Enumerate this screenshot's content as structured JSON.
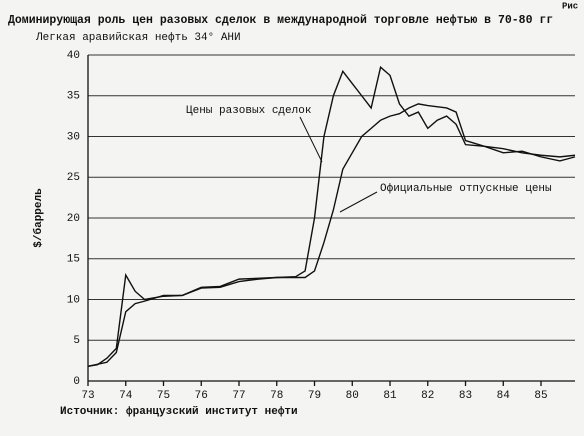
{
  "chart_data": {
    "type": "line",
    "figure_label": "Рис",
    "title": "Доминирующая роль цен разовых сделок в международной торговле нефтью в 70-80 гг",
    "subtitle": "Легкая аравийская нефть 34° АНИ",
    "y_label": "$/баррель",
    "source": "Источник: французский институт нефти",
    "xlim": [
      73,
      85.9
    ],
    "xticks": [
      73,
      74,
      75,
      76,
      77,
      78,
      79,
      80,
      81,
      82,
      83,
      84,
      85
    ],
    "ylim": [
      0,
      40
    ],
    "yticks": [
      0,
      5,
      10,
      15,
      20,
      25,
      30,
      35,
      40
    ],
    "grid": true,
    "series": [
      {
        "name": "Цены разовых сделок",
        "color": "#111111",
        "x": [
          73,
          73.25,
          73.5,
          73.75,
          74,
          74.25,
          74.5,
          74.75,
          75,
          75.5,
          76,
          76.5,
          77,
          77.5,
          78,
          78.5,
          78.75,
          79,
          79.25,
          79.5,
          79.75,
          80,
          80.25,
          80.5,
          80.75,
          81,
          81.25,
          81.5,
          81.75,
          82,
          82.25,
          82.5,
          82.75,
          83,
          83.5,
          84,
          84.5,
          85,
          85.5,
          85.9
        ],
        "values": [
          1.8,
          2,
          2.8,
          4,
          13,
          11,
          10,
          10.2,
          10.4,
          10.5,
          11.5,
          11.6,
          12.5,
          12.6,
          12.7,
          12.8,
          13.5,
          20,
          30,
          35,
          38,
          36.5,
          35,
          33.5,
          38.5,
          37.5,
          34,
          32.5,
          33,
          31,
          32,
          32.5,
          31.5,
          29,
          28.8,
          28,
          28.2,
          27.5,
          27,
          27.5
        ]
      },
      {
        "name": "Официальные отпускные цены",
        "color": "#111111",
        "x": [
          73,
          73.5,
          73.75,
          74,
          74.25,
          74.5,
          75,
          75.5,
          76,
          76.5,
          77,
          77.5,
          78,
          78.75,
          79,
          79.25,
          79.5,
          79.75,
          80,
          80.25,
          80.5,
          80.75,
          81,
          81.25,
          81.5,
          81.75,
          82,
          82.5,
          82.75,
          83,
          83.5,
          84,
          84.5,
          85,
          85.5,
          85.9
        ],
        "values": [
          1.8,
          2.3,
          3.5,
          8.5,
          9.5,
          9.8,
          10.5,
          10.5,
          11.4,
          11.5,
          12.2,
          12.5,
          12.7,
          12.7,
          13.5,
          17,
          21,
          26,
          28,
          30,
          31,
          32,
          32.5,
          32.8,
          33.5,
          34,
          33.8,
          33.5,
          33,
          29.5,
          28.8,
          28.5,
          28,
          27.7,
          27.5,
          27.7
        ]
      }
    ]
  }
}
